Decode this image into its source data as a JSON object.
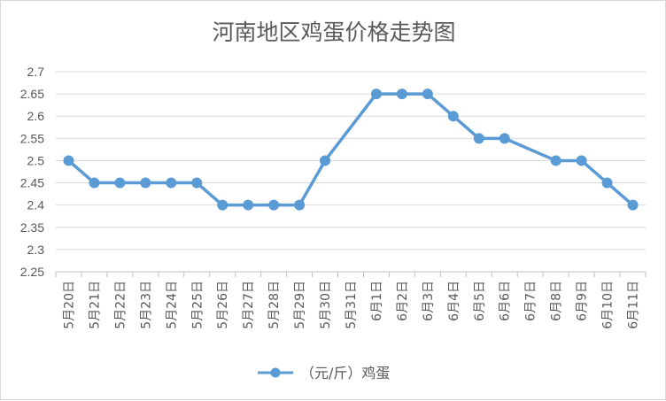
{
  "chart_data": {
    "type": "line",
    "title": "河南地区鸡蛋价格走势图",
    "categories": [
      "5月20日",
      "5月21日",
      "5月22日",
      "5月23日",
      "5月24日",
      "5月25日",
      "5月26日",
      "5月27日",
      "5月28日",
      "5月29日",
      "5月30日",
      "5月31日",
      "6月1日",
      "6月2日",
      "6月3日",
      "6月4日",
      "6月5日",
      "6月6日",
      "6月7日",
      "6月8日",
      "6月9日",
      "6月10日",
      "6月11日"
    ],
    "series": [
      {
        "name": "（元/斤）鸡蛋",
        "color": "#5b9bd5",
        "values": [
          2.5,
          2.45,
          2.45,
          2.45,
          2.45,
          2.45,
          2.4,
          2.4,
          2.4,
          2.4,
          2.5,
          null,
          2.65,
          2.65,
          2.65,
          2.6,
          2.55,
          2.55,
          null,
          2.5,
          2.5,
          2.45,
          2.4
        ]
      }
    ],
    "ylim": [
      2.25,
      2.7
    ],
    "yticks": [
      "2.7",
      "2.65",
      "2.6",
      "2.55",
      "2.5",
      "2.45",
      "2.4",
      "2.35",
      "2.3",
      "2.25"
    ],
    "grid": true,
    "legend": "bottom",
    "xlabel": "",
    "ylabel": ""
  }
}
